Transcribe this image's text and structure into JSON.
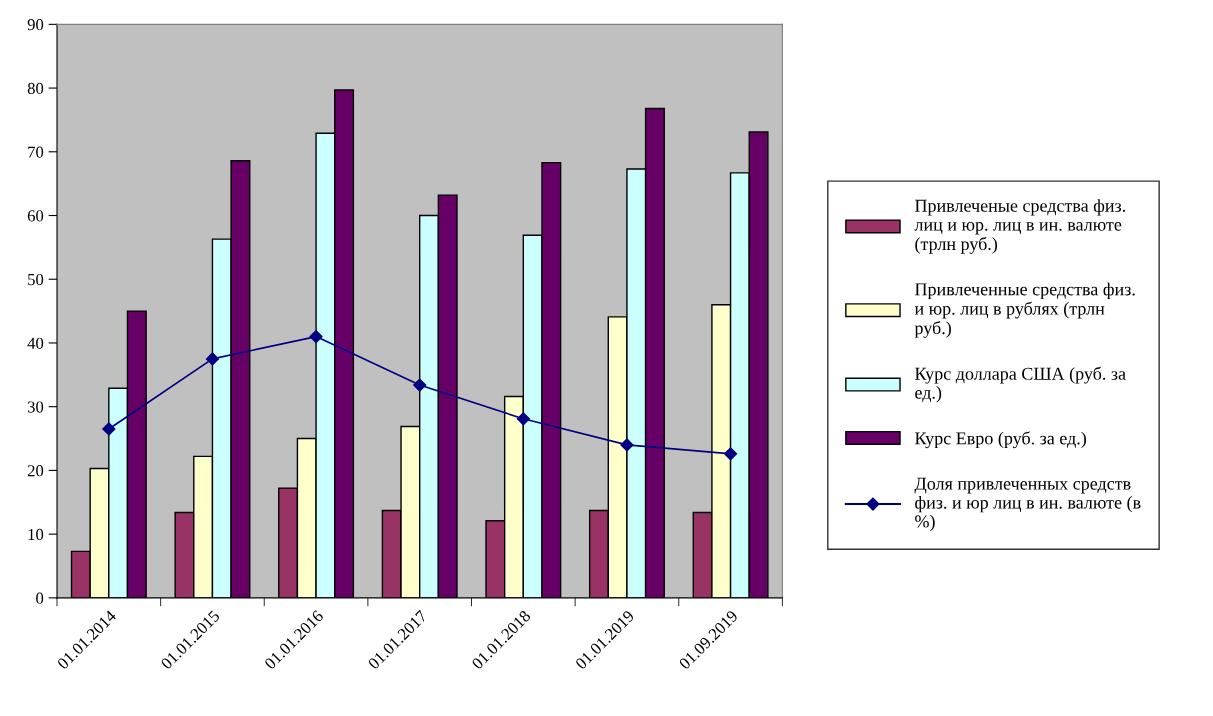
{
  "chart_data": {
    "type": "bar",
    "categories": [
      "01.01.2014",
      "01.01.2015",
      "01.01.2016",
      "01.01.2017",
      "01.01.2018",
      "01.01.2019",
      "01.09.2019"
    ],
    "series": [
      {
        "name": "Привлеченые средства физ.\nлиц и юр. лиц в ин. валюте\n(трлн руб.)",
        "color": "#993366",
        "values": [
          7.3,
          13.4,
          17.2,
          13.7,
          12.1,
          13.7,
          13.4
        ]
      },
      {
        "name": "Привлеченные средства физ.\nи юр. лиц в рублях (трлн\nруб.)",
        "color": "#ffffcc",
        "values": [
          20.3,
          22.2,
          25.0,
          26.9,
          31.6,
          44.1,
          46.0
        ]
      },
      {
        "name": "Курс доллара США (руб. за\nед.)",
        "color": "#ccffff",
        "values": [
          32.9,
          56.3,
          72.9,
          60.0,
          56.9,
          67.3,
          66.7
        ]
      },
      {
        "name": "Курс Евро (руб. за ед.)",
        "color": "#660066",
        "values": [
          45.0,
          68.6,
          79.7,
          63.2,
          68.3,
          76.8,
          73.1
        ]
      },
      {
        "name": "Доля привлеченных средств\nфиз. и юр лиц в ин. валюте (в\n%)",
        "color": "#000080",
        "type": "line",
        "marker": "diamond",
        "values": [
          26.5,
          37.5,
          41.0,
          33.4,
          28.1,
          24.0,
          22.6
        ]
      }
    ],
    "ylim": [
      0,
      90
    ],
    "yticks": [
      0,
      10,
      20,
      30,
      40,
      50,
      60,
      70,
      80,
      90
    ],
    "grid": false,
    "legend": "right"
  }
}
